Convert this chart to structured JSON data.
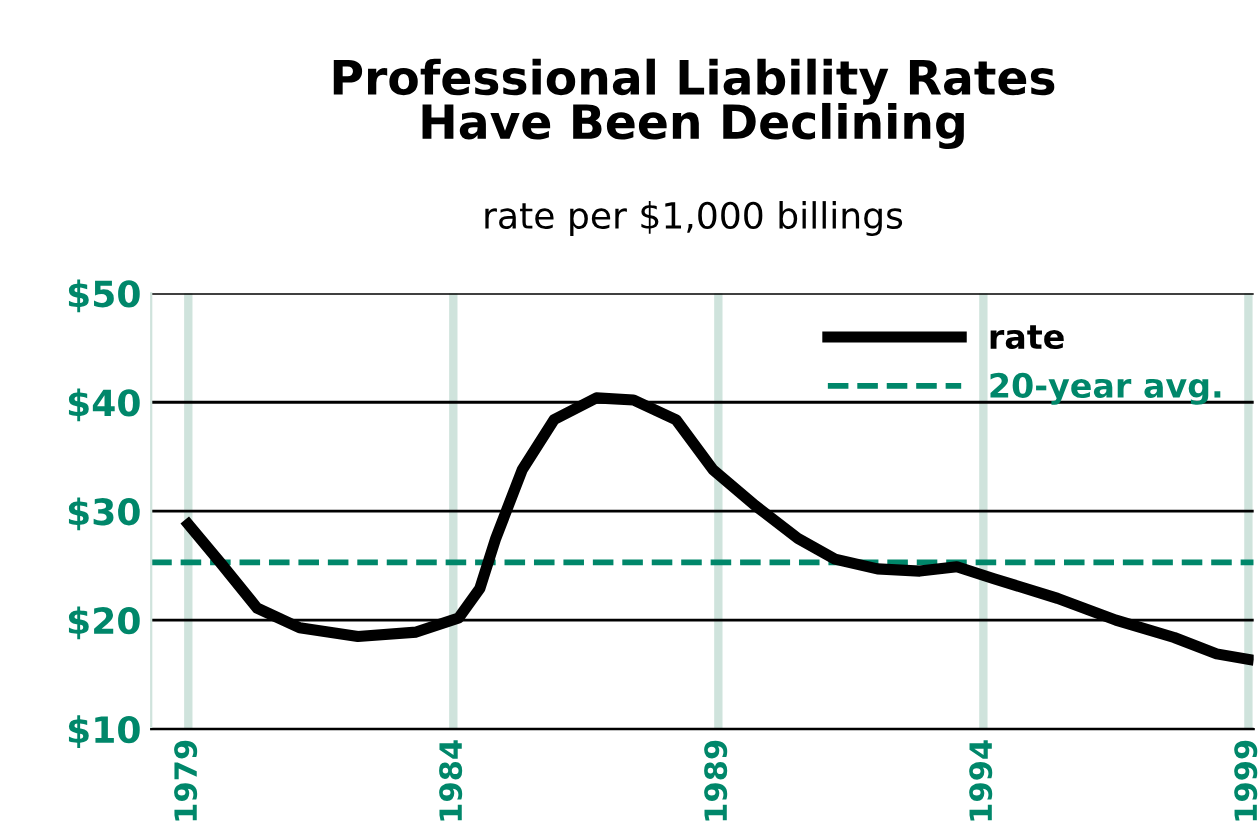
{
  "chart_data": {
    "type": "line",
    "title": "Professional Liability Rates\nHave Been Declining",
    "subtitle": "rate per $1,000 billings",
    "xlim": [
      1978.3,
      1999.1
    ],
    "xticks": [
      1979,
      1984,
      1989,
      1994,
      1999
    ],
    "ylim": [
      10,
      50
    ],
    "yticks": [
      {
        "value": 10,
        "label": "$10"
      },
      {
        "value": 20,
        "label": "$20"
      },
      {
        "value": 30,
        "label": "$30"
      },
      {
        "value": 40,
        "label": "$40"
      },
      {
        "value": 50,
        "label": "$50"
      }
    ],
    "series": [
      {
        "name": "rate",
        "color": "#000000",
        "x": [
          1979,
          1979.6,
          1980.3,
          1981.1,
          1982.2,
          1983.3,
          1984.1,
          1984.5,
          1984.8,
          1985.3,
          1985.9,
          1986.7,
          1987.4,
          1988.2,
          1988.9,
          1989.7,
          1990.5,
          1991.2,
          1992,
          1992.8,
          1993.5,
          1994.2,
          1995.4,
          1996.5,
          1997.6,
          1998.4,
          1999
        ],
        "values": [
          28.8,
          25.3,
          21.1,
          19.3,
          18.5,
          18.9,
          20.2,
          22.9,
          27.5,
          33.8,
          38.4,
          40.4,
          40.2,
          38.4,
          33.8,
          30.5,
          27.5,
          25.6,
          24.7,
          24.5,
          24.9,
          23.8,
          22,
          20,
          18.4,
          16.9,
          16.4
        ]
      }
    ],
    "ref_lines": [
      {
        "axis": "y",
        "value": 25.3,
        "label": "20-year avg.",
        "color": "#00876a",
        "line_style": "dashed"
      }
    ],
    "grid": true,
    "legend": "top right",
    "marker": "none",
    "line_style": "solid"
  }
}
